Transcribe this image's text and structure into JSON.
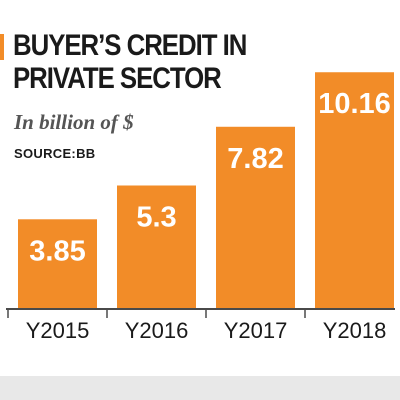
{
  "chart_data": {
    "type": "bar",
    "title": "BUYER’S CREDIT IN\nPRIVATE SECTOR",
    "subtitle": "In billion of $",
    "source_label": "SOURCE:",
    "source_value": "BB",
    "categories": [
      "Y2015",
      "Y2016",
      "Y2017",
      "Y2018"
    ],
    "series": [
      {
        "values": [
          3.85,
          5.3,
          7.82,
          10.16
        ]
      }
    ],
    "value_labels": [
      "3.85",
      "5.3",
      "7.82",
      "10.16"
    ],
    "ylim": [
      0,
      10.9
    ],
    "grid": false,
    "bar_color": "#f28c28",
    "axis_color": "#4a4a4a"
  }
}
